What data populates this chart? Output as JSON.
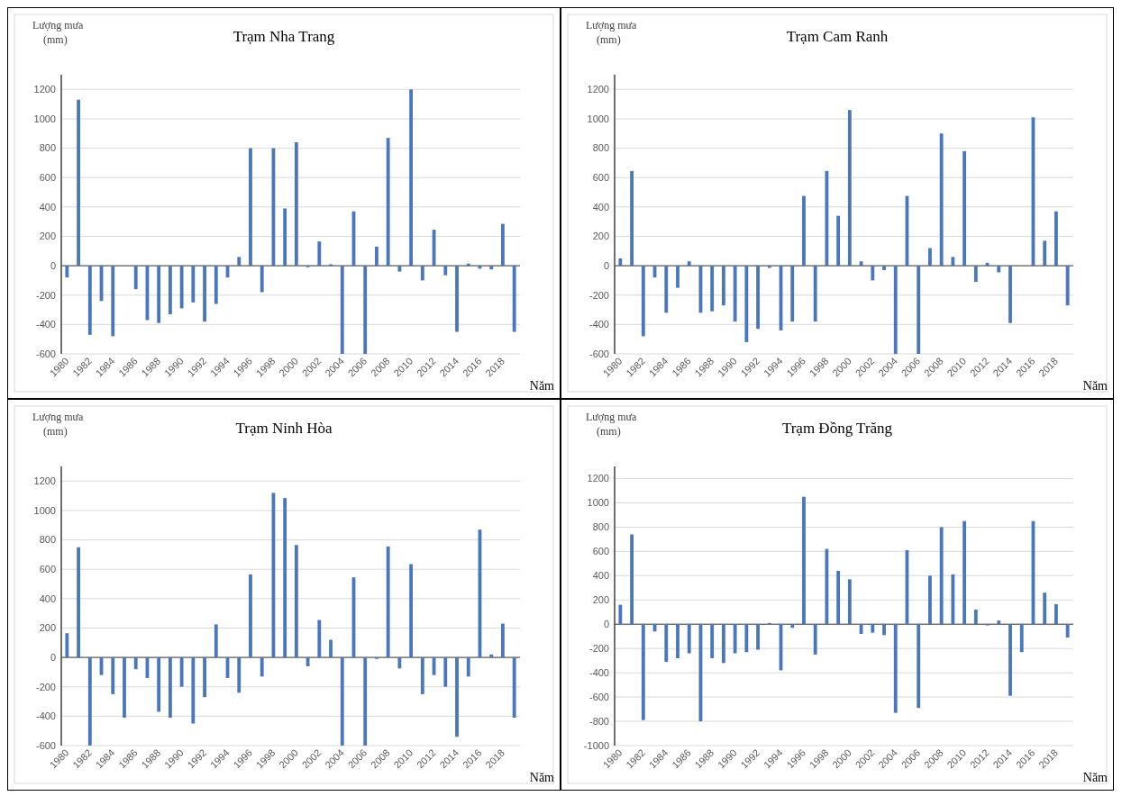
{
  "chart_data": [
    {
      "type": "bar",
      "title": "Trạm Nha Trang",
      "ylabel": "Lượng mưa (mm)",
      "xlabel": "Năm",
      "color": "#4a76bd",
      "grid": "y",
      "ylim": [
        -600,
        1300
      ],
      "yticks": [
        -600,
        -400,
        -200,
        0,
        200,
        400,
        600,
        800,
        1000,
        1200
      ],
      "categories": [
        "1980",
        null,
        "1982",
        null,
        "1984",
        null,
        "1986",
        null,
        "1988",
        null,
        "1990",
        null,
        "1992",
        null,
        "1994",
        null,
        "1996",
        null,
        "1998",
        null,
        "2000",
        null,
        "2002",
        null,
        "2004",
        null,
        "2006",
        null,
        "2008",
        null,
        "2010",
        null,
        "2012",
        null,
        "2014",
        null,
        "2016",
        null,
        "2018",
        null
      ],
      "values": [
        -80,
        1130,
        -470,
        -240,
        -480,
        0,
        -160,
        -370,
        -390,
        -330,
        -290,
        -250,
        -380,
        -260,
        -80,
        60,
        800,
        -180,
        800,
        390,
        840,
        -10,
        165,
        10,
        -600,
        370,
        -600,
        130,
        870,
        -40,
        1200,
        -100,
        245,
        -65,
        -450,
        15,
        -20,
        -25,
        285,
        -450
      ]
    },
    {
      "type": "bar",
      "title": "Trạm Cam Ranh",
      "ylabel": "Lượng mưa (mm)",
      "xlabel": "Năm",
      "color": "#4a76bd",
      "grid": "y",
      "ylim": [
        -600,
        1300
      ],
      "yticks": [
        -600,
        -400,
        -200,
        0,
        200,
        400,
        600,
        800,
        1000,
        1200
      ],
      "categories": [
        "1980",
        null,
        "1982",
        null,
        "1984",
        null,
        "1986",
        null,
        "1988",
        null,
        "1990",
        null,
        "1992",
        null,
        "1994",
        null,
        "1996",
        null,
        "1998",
        null,
        "2000",
        null,
        "2002",
        null,
        "2004",
        null,
        "2006",
        null,
        "2008",
        null,
        "2010",
        null,
        "2012",
        null,
        "2014",
        null,
        "2016",
        null,
        "2018",
        null
      ],
      "values": [
        50,
        645,
        -480,
        -80,
        -320,
        -150,
        30,
        -320,
        -310,
        -270,
        -380,
        -520,
        -430,
        -15,
        -440,
        -380,
        475,
        -380,
        645,
        340,
        1060,
        30,
        -100,
        -30,
        -600,
        475,
        -600,
        120,
        900,
        60,
        780,
        -110,
        20,
        -45,
        -390,
        0,
        1010,
        170,
        370,
        -270
      ]
    },
    {
      "type": "bar",
      "title": "Trạm Ninh Hòa",
      "ylabel": "Lượng mưa (mm)",
      "xlabel": "Năm",
      "color": "#4a76bd",
      "grid": "y",
      "ylim": [
        -600,
        1300
      ],
      "yticks": [
        -600,
        -400,
        -200,
        0,
        200,
        400,
        600,
        800,
        1000,
        1200
      ],
      "categories": [
        "1980",
        null,
        "1982",
        null,
        "1984",
        null,
        "1986",
        null,
        "1988",
        null,
        "1990",
        null,
        "1992",
        null,
        "1994",
        null,
        "1996",
        null,
        "1998",
        null,
        "2000",
        null,
        "2002",
        null,
        "2004",
        null,
        "2006",
        null,
        "2008",
        null,
        "2010",
        null,
        "2012",
        null,
        "2014",
        null,
        "2016",
        null,
        "2018",
        null
      ],
      "values": [
        165,
        750,
        -600,
        -120,
        -250,
        -410,
        -80,
        -140,
        -370,
        -410,
        -200,
        -450,
        -270,
        225,
        -140,
        -240,
        565,
        -130,
        1120,
        1085,
        765,
        -60,
        255,
        120,
        -600,
        545,
        -600,
        -10,
        755,
        -75,
        635,
        -250,
        -120,
        -200,
        -540,
        -130,
        870,
        20,
        230,
        -410
      ]
    },
    {
      "type": "bar",
      "title": "Trạm Đồng Trăng",
      "ylabel": "Lượng mưa (mm)",
      "xlabel": "Năm",
      "color": "#4a76bd",
      "grid": "y",
      "ylim": [
        -1000,
        1300
      ],
      "yticks": [
        -1000,
        -800,
        -600,
        -400,
        -200,
        0,
        200,
        400,
        600,
        800,
        1000,
        1200
      ],
      "categories": [
        "1980",
        null,
        "1982",
        null,
        "1984",
        null,
        "1986",
        null,
        "1988",
        null,
        "1990",
        null,
        "1992",
        null,
        "1994",
        null,
        "1996",
        null,
        "1998",
        null,
        "2000",
        null,
        "2002",
        null,
        "2004",
        null,
        "2006",
        null,
        "2008",
        null,
        "2010",
        null,
        "2012",
        null,
        "2014",
        null,
        "2016",
        null,
        "2018",
        null
      ],
      "values": [
        160,
        740,
        -790,
        -60,
        -310,
        -280,
        -240,
        -800,
        -280,
        -320,
        -240,
        -230,
        -210,
        10,
        -380,
        -30,
        1050,
        -250,
        620,
        440,
        370,
        -80,
        -70,
        -90,
        -730,
        610,
        -690,
        400,
        800,
        410,
        850,
        120,
        -10,
        30,
        -590,
        -230,
        850,
        260,
        165,
        -110
      ]
    }
  ]
}
